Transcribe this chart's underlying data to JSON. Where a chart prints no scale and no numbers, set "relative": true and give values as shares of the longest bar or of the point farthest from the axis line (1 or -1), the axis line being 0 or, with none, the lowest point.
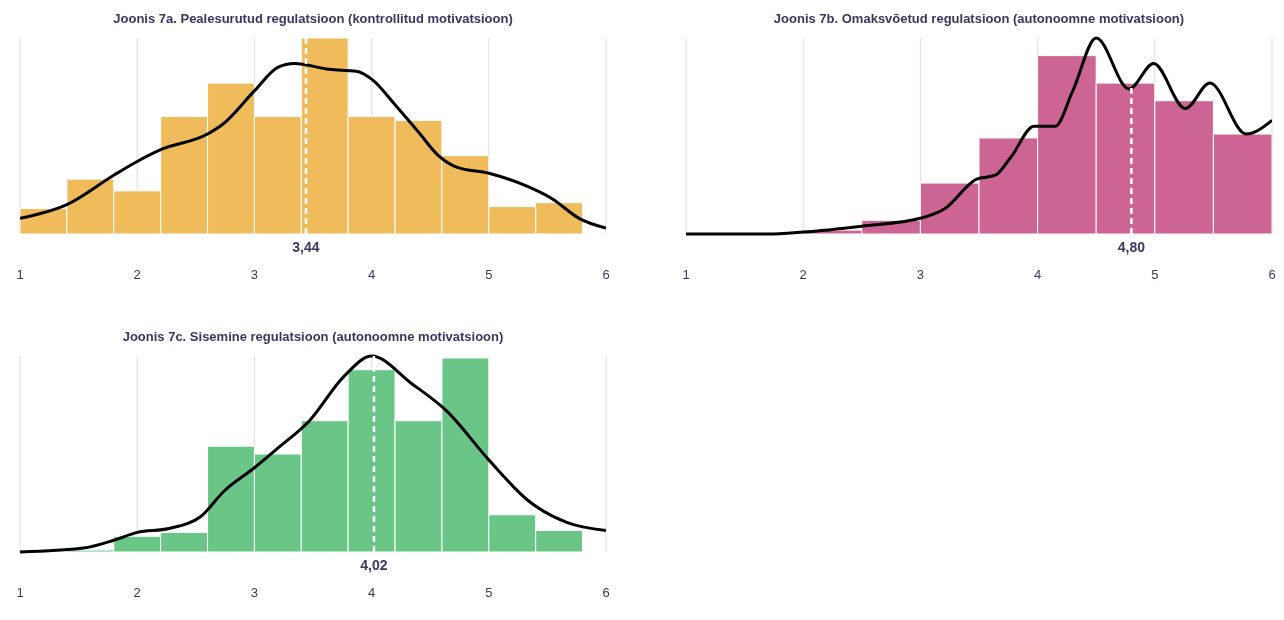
{
  "chart_data": [
    {
      "type": "histogram",
      "title": "Joonis 7a. Pealesurutud regulatsioon (kontrollitud motivatsioon)",
      "relative": true,
      "color": "#f0bc5b",
      "bins": [
        1,
        1.4,
        1.8,
        2.2,
        2.6,
        3,
        3.4,
        3.8,
        4.2,
        4.6,
        5,
        5.4,
        5.8
      ],
      "values": [
        0.13,
        0.28,
        0.22,
        0.6,
        0.77,
        0.6,
        1,
        0.6,
        0.58,
        0.4,
        0.14,
        0.16
      ],
      "xlim": [
        1,
        6
      ],
      "xticks": [
        1,
        2,
        3,
        4,
        5,
        6
      ],
      "grid": "x",
      "series": [
        {
          "type": "line",
          "color": "#000000",
          "x": [
            1,
            1.4,
            1.8,
            2,
            2.2,
            2.6,
            2.73,
            3,
            3.2,
            3.34,
            3.64,
            3.87,
            4,
            4.2,
            4.4,
            4.57,
            4.73,
            5,
            5.34,
            5.54,
            5.77,
            6
          ],
          "values": [
            0.08,
            0.15,
            0.3,
            0.37,
            0.43,
            0.51,
            0.56,
            0.73,
            0.85,
            0.87,
            0.84,
            0.83,
            0.79,
            0.66,
            0.52,
            0.4,
            0.34,
            0.31,
            0.24,
            0.18,
            0.08,
            0.03
          ]
        }
      ],
      "ref_lines": [
        {
          "axis": "x",
          "value": 3.44,
          "label": "3,44",
          "color": "#ffffff",
          "line_style": "dashed"
        }
      ]
    },
    {
      "type": "histogram",
      "title": "Joonis 7b. Omaksvõetud regulatsioon (autonoomne motivatsioon)",
      "relative": true,
      "color": "#cc6594",
      "bins": [
        2,
        2.5,
        3,
        3.5,
        4,
        4.5,
        5,
        5.5,
        6
      ],
      "values": [
        0.02,
        0.07,
        0.26,
        0.49,
        0.91,
        0.77,
        0.68,
        0.51
      ],
      "xlim": [
        1,
        6
      ],
      "xticks": [
        1,
        2,
        3,
        4,
        5,
        6
      ],
      "grid": "x",
      "series": [
        {
          "type": "line",
          "color": "#000000",
          "x": [
            1,
            1.69,
            2,
            2.5,
            3,
            3.21,
            3.48,
            3.64,
            3.77,
            3.97,
            4.15,
            4.3,
            4.5,
            4.78,
            4.99,
            5.26,
            5.47,
            5.78,
            6
          ],
          "values": [
            0,
            0,
            0.01,
            0.04,
            0.08,
            0.13,
            0.28,
            0.3,
            0.39,
            0.55,
            0.55,
            0.73,
            1,
            0.74,
            0.87,
            0.64,
            0.77,
            0.51,
            0.58
          ]
        }
      ],
      "ref_lines": [
        {
          "axis": "x",
          "value": 4.8,
          "label": "4,80",
          "color": "#ffffff",
          "line_style": "dashed"
        }
      ]
    },
    {
      "type": "histogram",
      "title": "Joonis 7c. Sisemine regulatsioon (autonoomne motivatsioon)",
      "relative": true,
      "color": "#6ac687",
      "bins": [
        1.4,
        1.8,
        2.2,
        2.6,
        3,
        3.4,
        3.8,
        4.2,
        4.6,
        5,
        5.4,
        5.8
      ],
      "values": [
        0.01,
        0.08,
        0.1,
        0.54,
        0.5,
        0.67,
        0.93,
        0.67,
        0.99,
        0.19,
        0.11
      ],
      "xlim": [
        1,
        6
      ],
      "xticks": [
        1,
        2,
        3,
        4,
        5,
        6
      ],
      "grid": "x",
      "series": [
        {
          "type": "line",
          "color": "#000000",
          "x": [
            1,
            1.54,
            1.8,
            2,
            2.27,
            2.54,
            2.74,
            3,
            3.2,
            3.47,
            3.77,
            4,
            4.34,
            4.64,
            5,
            5.34,
            5.67,
            6
          ],
          "values": [
            0,
            0.02,
            0.06,
            0.1,
            0.12,
            0.18,
            0.31,
            0.43,
            0.53,
            0.67,
            0.9,
            1,
            0.86,
            0.72,
            0.47,
            0.26,
            0.15,
            0.11
          ]
        }
      ],
      "ref_lines": [
        {
          "axis": "x",
          "value": 4.02,
          "label": "4,02",
          "color": "#ffffff",
          "line_style": "dashed"
        }
      ]
    }
  ]
}
